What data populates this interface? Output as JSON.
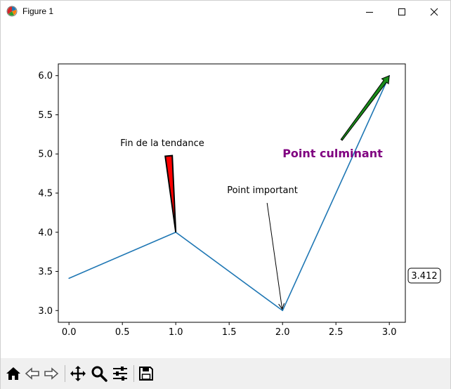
{
  "window": {
    "title": "Figure 1",
    "minimize_icon": "minimize-icon",
    "maximize_icon": "maximize-icon",
    "close_icon": "close-icon"
  },
  "toolbar": {
    "buttons": [
      {
        "name": "home-icon",
        "tooltip": ""
      },
      {
        "name": "back-arrow-icon",
        "tooltip": ""
      },
      {
        "name": "forward-arrow-icon",
        "tooltip": ""
      },
      {
        "name": "pan-icon",
        "tooltip": ""
      },
      {
        "name": "zoom-icon",
        "tooltip": ""
      },
      {
        "name": "configure-subplots-icon",
        "tooltip": ""
      },
      {
        "name": "save-icon",
        "tooltip": ""
      }
    ]
  },
  "chart_data": {
    "type": "line",
    "x": [
      0,
      1,
      2,
      3
    ],
    "series": [
      {
        "values": [
          3.412,
          4.0,
          3.0,
          6.0
        ],
        "color": "#1f77b4"
      }
    ],
    "xlim": [
      -0.1,
      3.15
    ],
    "ylim": [
      2.85,
      6.15
    ],
    "xticks": [
      0.0,
      0.5,
      1.0,
      1.5,
      2.0,
      2.5,
      3.0
    ],
    "xtick_labels": [
      "0.0",
      "0.5",
      "1.0",
      "1.5",
      "2.0",
      "2.5",
      "3.0"
    ],
    "yticks": [
      3.0,
      3.5,
      4.0,
      4.5,
      5.0,
      5.5,
      6.0
    ],
    "ytick_labels": [
      "3.0",
      "3.5",
      "4.0",
      "4.5",
      "5.0",
      "5.5",
      "6.0"
    ],
    "grid": false,
    "annotations": [
      {
        "text": "Fin de la tendance",
        "point": [
          1,
          4.0
        ],
        "text_pos": [
          0.5,
          5.1
        ],
        "arrow": "wedge",
        "arrow_color": "#ff0000",
        "text_color": "#000000",
        "bold": false
      },
      {
        "text": "Point important",
        "point": [
          2,
          3.0
        ],
        "text_pos": [
          1.5,
          4.5
        ],
        "arrow": "simple",
        "arrow_color": "#000000",
        "text_color": "#000000",
        "bold": false
      },
      {
        "text": "Point culminant",
        "point": [
          3,
          6.0
        ],
        "text_pos": [
          2.0,
          5.0
        ],
        "arrow": "fancy",
        "arrow_color": "#1a8c1a",
        "text_color": "#800080",
        "bold": true
      }
    ],
    "side_label": "3.412"
  }
}
